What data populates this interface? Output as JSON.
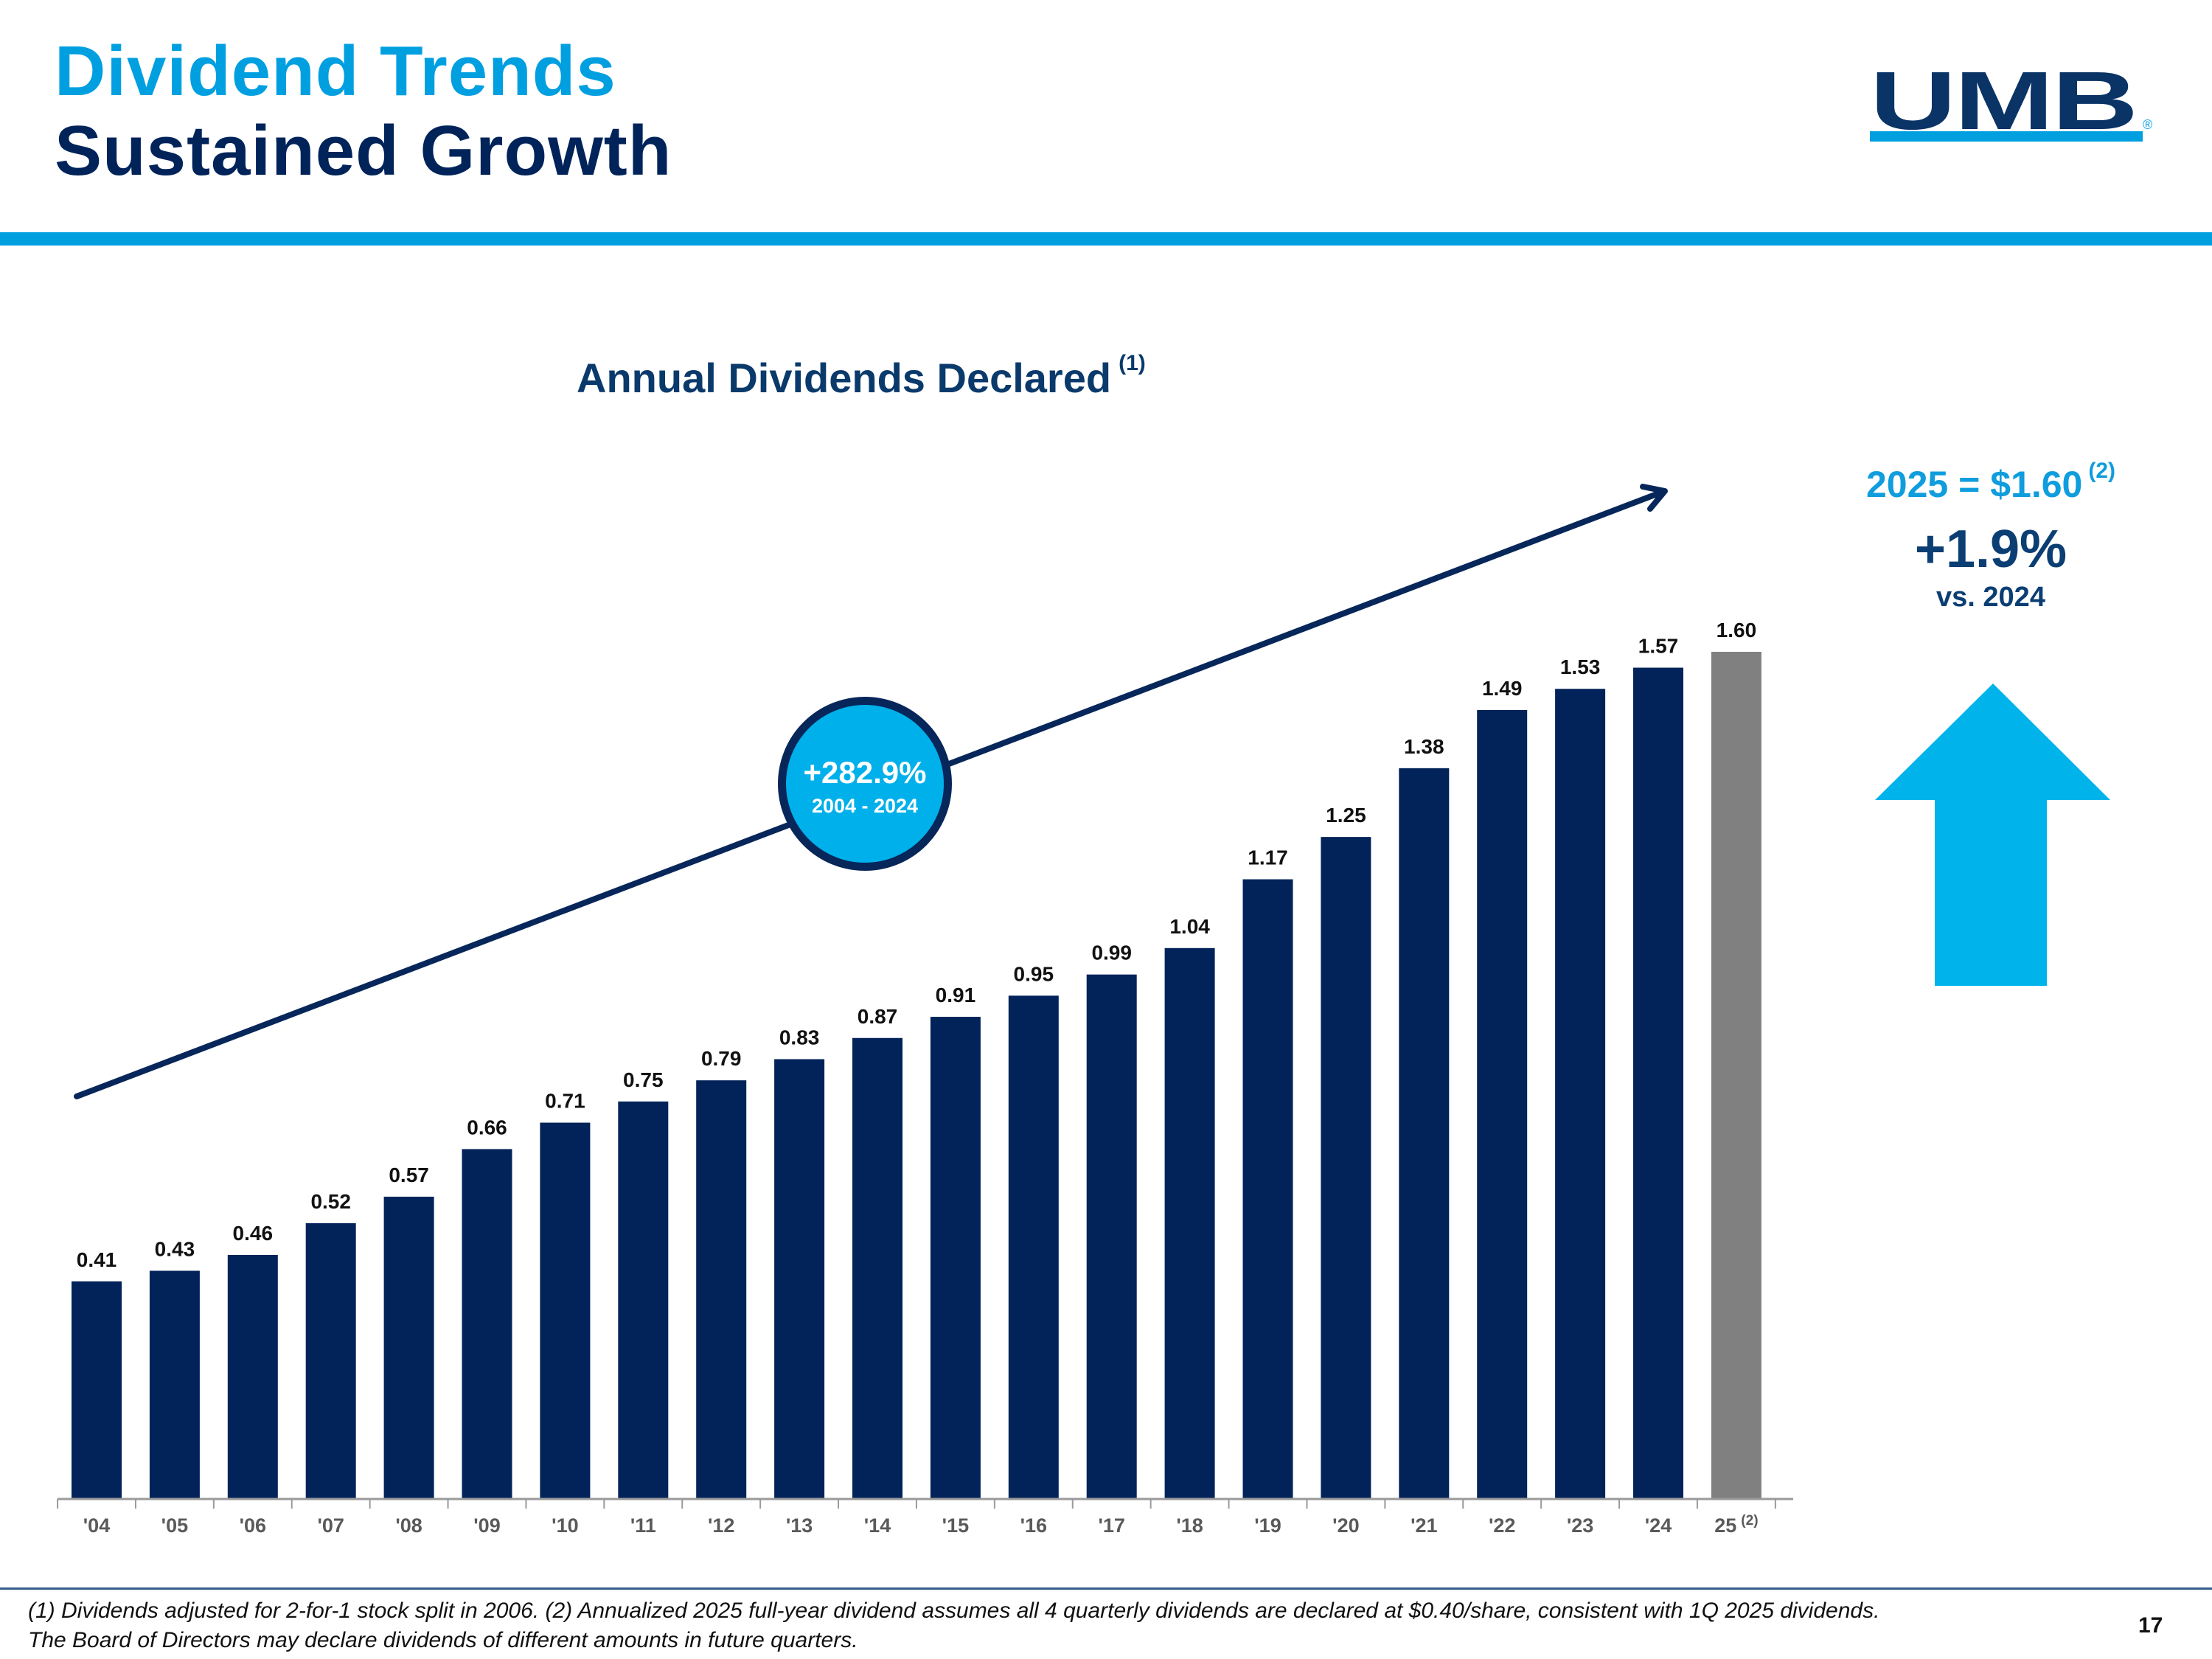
{
  "header": {
    "title_line1": "Dividend Trends",
    "title_line2": "Sustained Growth",
    "logo_text": "UMB",
    "logo_registered": "®"
  },
  "colors": {
    "accent_blue": "#009fe0",
    "navy": "#00235a",
    "bar_navy": "#022359",
    "bar_projection": "#808080",
    "arrow_cyan": "#00b4eb",
    "projection_label": "#1aa4e0"
  },
  "chart_data": {
    "type": "bar",
    "title": "Annual Dividends Declared",
    "title_footnote": "(1)",
    "xlabel": "",
    "ylabel": "",
    "ylim": [
      0,
      1.65
    ],
    "grid": false,
    "categories": [
      "'04",
      "'05",
      "'06",
      "'07",
      "'08",
      "'09",
      "'10",
      "'11",
      "'12",
      "'13",
      "'14",
      "'15",
      "'16",
      "'17",
      "'18",
      "'19",
      "'20",
      "'21",
      "'22",
      "'23",
      "'24",
      "25"
    ],
    "last_category_footnote": "(2)",
    "values": [
      0.41,
      0.43,
      0.46,
      0.52,
      0.57,
      0.66,
      0.71,
      0.75,
      0.79,
      0.83,
      0.87,
      0.91,
      0.95,
      0.99,
      1.04,
      1.17,
      1.25,
      1.38,
      1.49,
      1.53,
      1.57,
      1.6
    ],
    "value_labels": [
      "0.41",
      "0.43",
      "0.46",
      "0.52",
      "0.57",
      "0.66",
      "0.71",
      "0.75",
      "0.79",
      "0.83",
      "0.87",
      "0.91",
      "0.95",
      "0.99",
      "1.04",
      "1.17",
      "1.25",
      "1.38",
      "1.49",
      "1.53",
      "1.57",
      "1.60"
    ],
    "projected_index": 21,
    "trend_annotation": {
      "label": "+282.9%",
      "period": "2004 - 2024"
    }
  },
  "callout": {
    "headline": "2025 = $1.60",
    "headline_footnote": "(2)",
    "change": "+1.9%",
    "comparison": "vs. 2024"
  },
  "footer": {
    "footnote_line1": "(1) Dividends adjusted for 2-for-1 stock split in 2006. (2) Annualized 2025 full-year dividend assumes all 4 quarterly dividends are declared at $0.40/share, consistent with 1Q 2025 dividends.",
    "footnote_line2": "The Board of Directors may declare dividends of different amounts in future quarters.",
    "page_number": "17"
  }
}
